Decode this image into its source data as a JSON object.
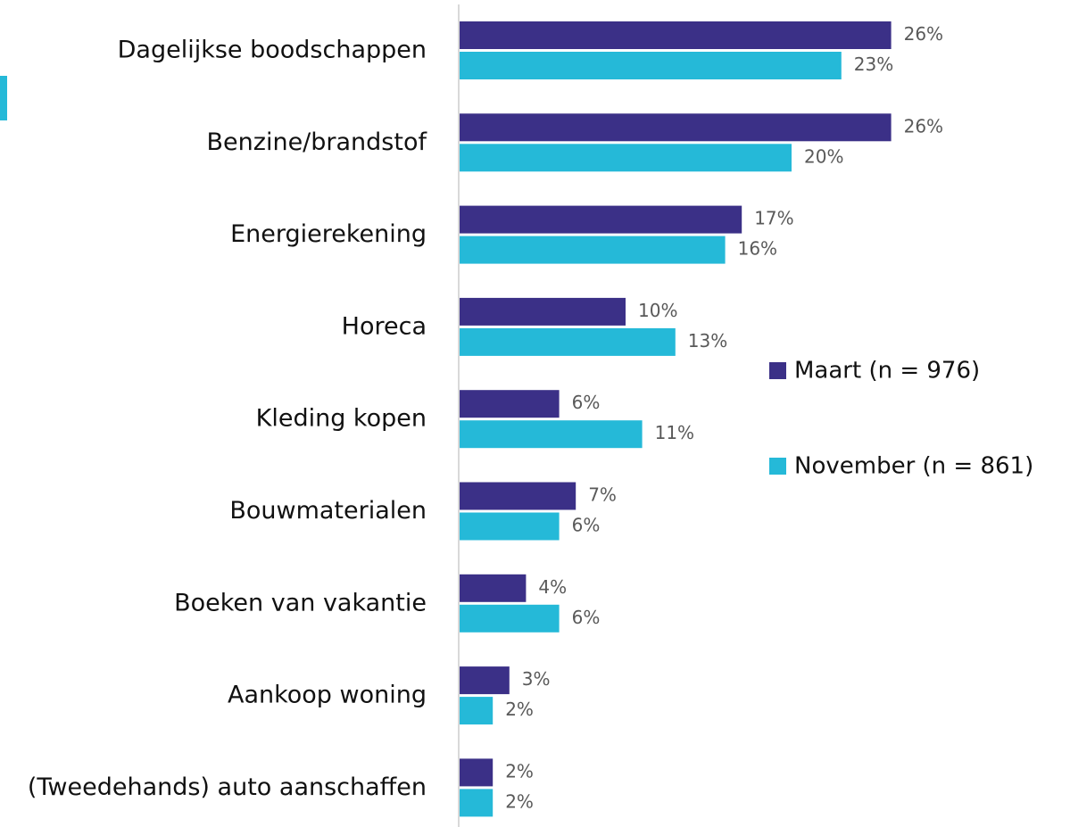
{
  "chart_data": {
    "type": "bar",
    "orientation": "horizontal",
    "categories": [
      "Dagelijkse boodschappen",
      "Benzine/brandstof",
      "Energierekening",
      "Horeca",
      "Kleding kopen",
      "Bouwmaterialen",
      "Boeken van vakantie",
      "Aankoop woning",
      "(Tweedehands) auto aanschaffen"
    ],
    "series": [
      {
        "name": "Maart (n = 976)",
        "color": "#3b3087",
        "values": [
          26,
          26,
          17,
          10,
          6,
          7,
          4,
          3,
          2
        ],
        "value_labels": [
          "26%",
          "26%",
          "17%",
          "10%",
          "6%",
          "7%",
          "4%",
          "3%",
          "2%"
        ]
      },
      {
        "name": "November (n = 861)",
        "color": "#25b9d8",
        "values": [
          23,
          20,
          16,
          13,
          11,
          6,
          6,
          2,
          2
        ],
        "value_labels": [
          "23%",
          "20%",
          "16%",
          "13%",
          "11%",
          "6%",
          "6%",
          "2%",
          "2%"
        ]
      }
    ]
  }
}
